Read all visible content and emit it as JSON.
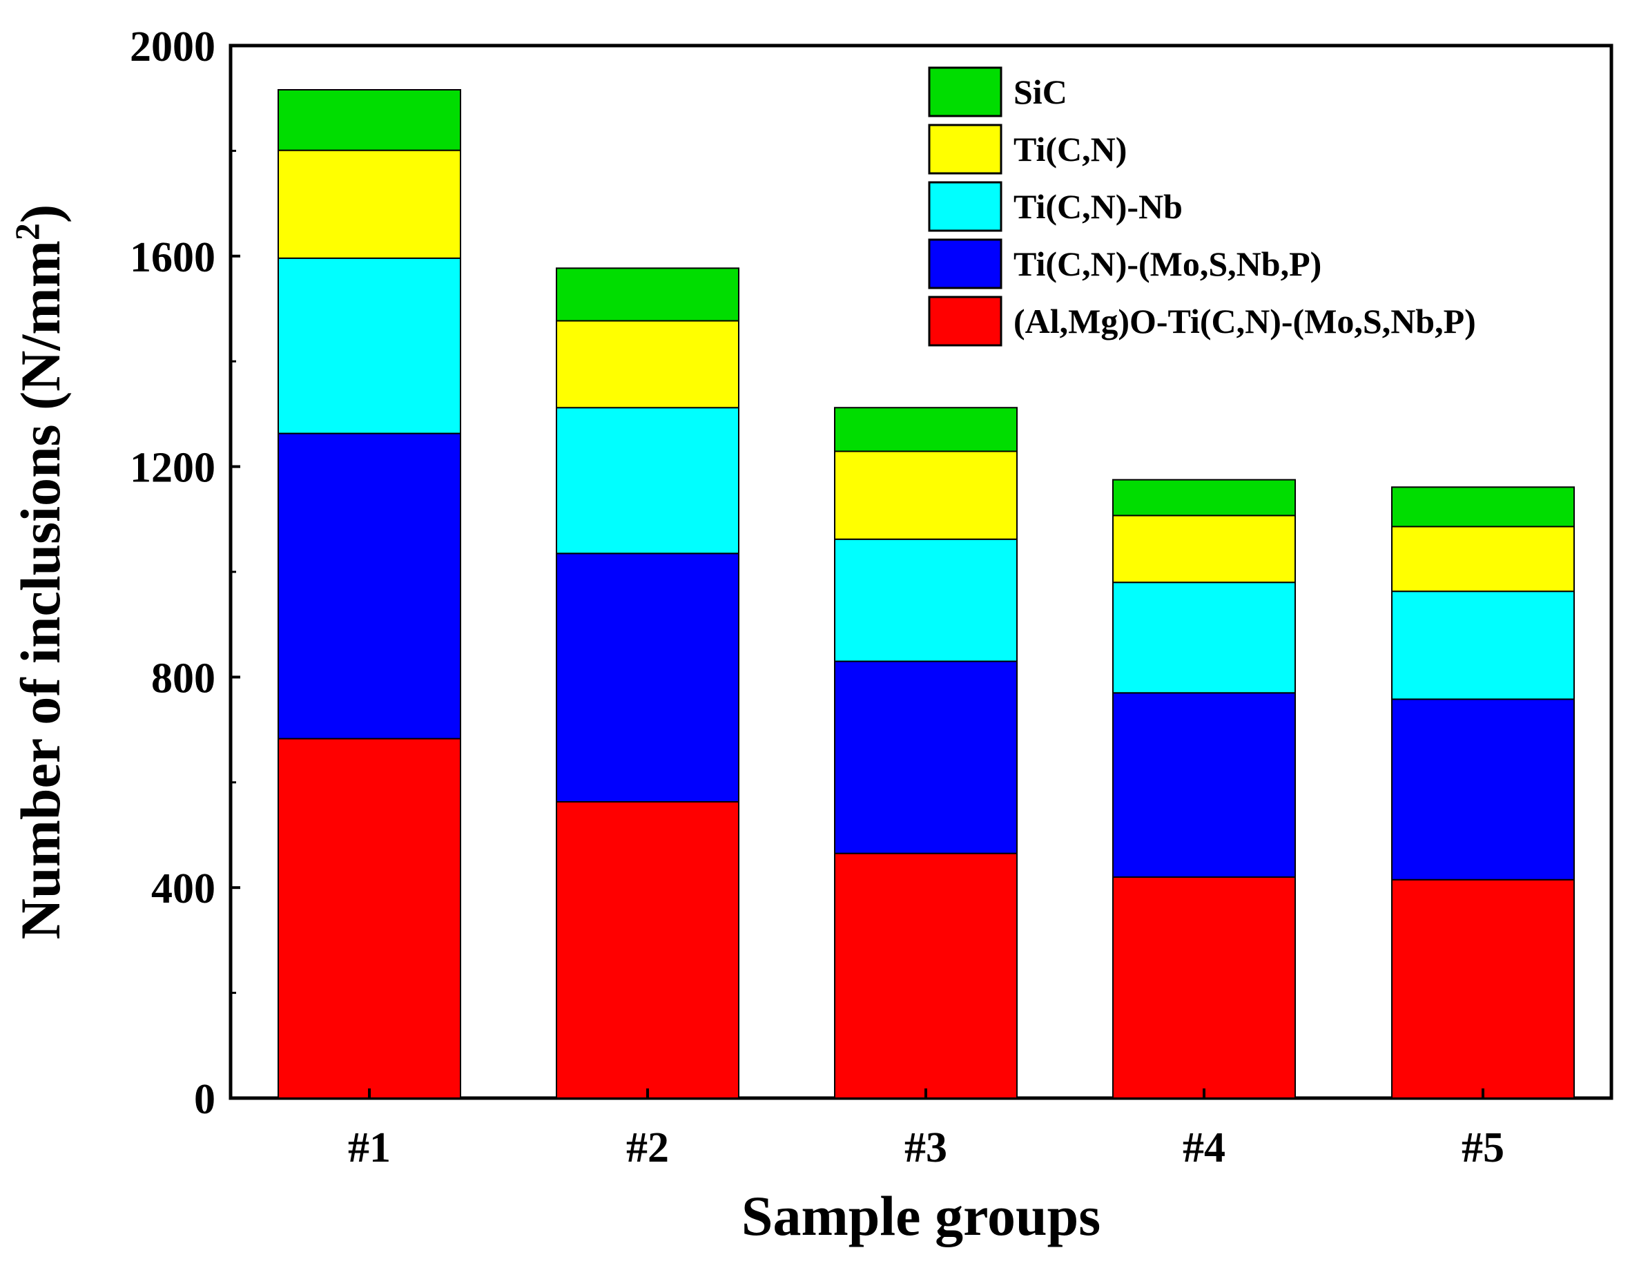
{
  "chart_data": {
    "type": "bar",
    "stacked": true,
    "categories": [
      "#1",
      "#2",
      "#3",
      "#4",
      "#5"
    ],
    "series": [
      {
        "name": "(Al,Mg)O-Ti(C,N)-(Mo,S,Nb,P)",
        "color": "#ff0000",
        "values": [
          683,
          563,
          465,
          420,
          415
        ]
      },
      {
        "name": "Ti(C,N)-(Mo,S,Nb,P)",
        "color": "#0000ff",
        "values": [
          580,
          472,
          365,
          350,
          343
        ]
      },
      {
        "name": "Ti(C,N)-Nb",
        "color": "#00ffff",
        "values": [
          333,
          277,
          232,
          210,
          205
        ]
      },
      {
        "name": "Ti(C,N)",
        "color": "#ffff00",
        "values": [
          205,
          165,
          167,
          127,
          123
        ]
      },
      {
        "name": "SiC",
        "color": "#00dd00",
        "values": [
          115,
          100,
          83,
          68,
          75
        ]
      }
    ],
    "legend_order": [
      "SiC",
      "Ti(C,N)",
      "Ti(C,N)-Nb",
      "Ti(C,N)-(Mo,S,Nb,P)",
      "(Al,Mg)O-Ti(C,N)-(Mo,S,Nb,P)"
    ],
    "title": "",
    "xlabel": "Sample groups",
    "ylabel_main": "Number of  inclusions (N/mm",
    "ylabel_sup": "2",
    "ylabel_end": ")",
    "ylim": [
      0,
      2000
    ],
    "yticks": [
      0,
      400,
      800,
      1200,
      1600,
      2000
    ],
    "grid": false,
    "legend_position": "top-right"
  }
}
